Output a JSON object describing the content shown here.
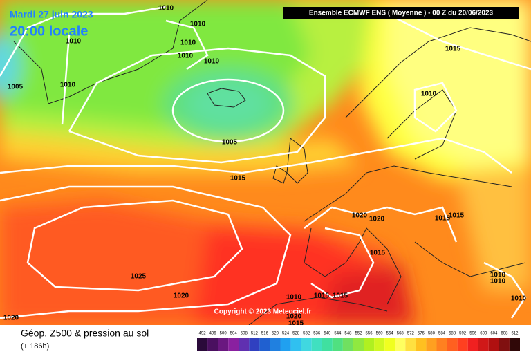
{
  "title": {
    "date": "Mardi 27 juin 2023",
    "time": "20:00 locale"
  },
  "header": "Ensemble ECMWF ENS  ( Moyenne )  -  00 Z du 20/06/2023",
  "copyright": "Copyright © 2023 Meteociel.fr",
  "isobar_labels": [
    "1010",
    "1010",
    "1010",
    "1010",
    "1010",
    "1010",
    "1005",
    "1010",
    "1005",
    "1015",
    "1015",
    "1010",
    "1020",
    "1020",
    "1015",
    "1015",
    "1015",
    "1025",
    "1020",
    "1020",
    "1015",
    "1015",
    "1010",
    "1010",
    "1010",
    "1010",
    "1020",
    "1015"
  ],
  "legend": {
    "title": "Géop. Z500 & pression au sol",
    "subtitle": "(+ 186h)",
    "scale": [
      492,
      496,
      500,
      504,
      508,
      512,
      516,
      520,
      524,
      528,
      532,
      536,
      540,
      544,
      548,
      552,
      556,
      560,
      564,
      568,
      572,
      576,
      580,
      584,
      588,
      592,
      596,
      600,
      604,
      608,
      612
    ],
    "colors": [
      "#2a0a3a",
      "#4a1060",
      "#6a1880",
      "#8a20a0",
      "#6030b0",
      "#3040c0",
      "#2060d0",
      "#2080e0",
      "#20a0f0",
      "#30c0f0",
      "#40d8e0",
      "#40e0c0",
      "#40e0a0",
      "#50e080",
      "#70e060",
      "#90e840",
      "#b0f020",
      "#d0f820",
      "#f0ff20",
      "#ffff60",
      "#ffe040",
      "#ffc020",
      "#ffa020",
      "#ff8020",
      "#ff6020",
      "#ff4020",
      "#f02020",
      "#d01818",
      "#b01010",
      "#801010",
      "#300808"
    ]
  }
}
